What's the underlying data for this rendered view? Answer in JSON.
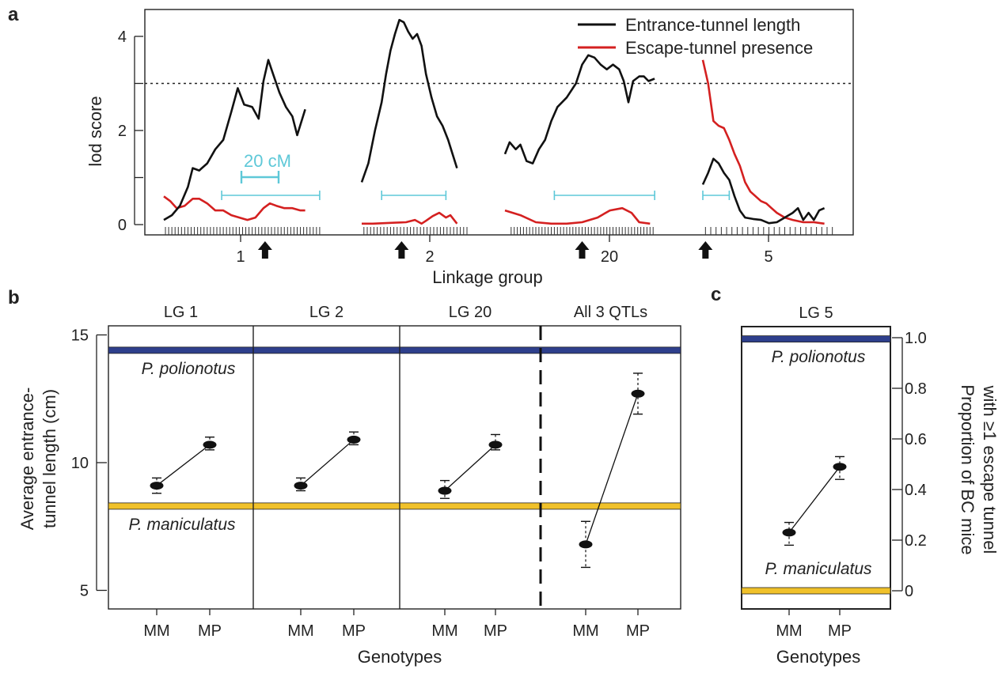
{
  "panel_labels": {
    "a": "a",
    "b": "b",
    "c": "c"
  },
  "colors": {
    "entrance": "#111111",
    "escape": "#d42020",
    "scale_bar": "#5ec8d8",
    "polionotus_band": "#2e3f8c",
    "maniculatus_band": "#f0c12a",
    "axis": "#222222"
  },
  "chart_data": [
    {
      "id": "panel-a",
      "type": "line",
      "xlabel": "Linkage group",
      "ylabel": "lod score",
      "ylim": [
        0,
        4.4
      ],
      "yticks": [
        0,
        2,
        4
      ],
      "threshold": 3.0,
      "threshold_style": "dotted",
      "legend": {
        "placement": "top-right",
        "entries": [
          {
            "name": "Entrance-tunnel length",
            "color": "#111111"
          },
          {
            "name": "Escape-tunnel presence",
            "color": "#d42020"
          }
        ]
      },
      "scale_bar_label": "20 cM",
      "linkage_groups": [
        {
          "label": "1",
          "x_range": [
            0,
            100
          ],
          "peak_marker": 63,
          "bracket": [
            36,
            97
          ],
          "markers": [
            1,
            3,
            5,
            7,
            9,
            11,
            13,
            15,
            17,
            19,
            21,
            23,
            25,
            27,
            29,
            31,
            33,
            35,
            37,
            39,
            41,
            43,
            45,
            47,
            49,
            51,
            53,
            55,
            57,
            59,
            61,
            63,
            65,
            67,
            69,
            71,
            73,
            75,
            77,
            79,
            81,
            83,
            85,
            87,
            89,
            91,
            93,
            95,
            97
          ],
          "entrance": [
            [
              0,
              0.1
            ],
            [
              5,
              0.2
            ],
            [
              10,
              0.4
            ],
            [
              15,
              0.8
            ],
            [
              18,
              1.2
            ],
            [
              22,
              1.15
            ],
            [
              27,
              1.3
            ],
            [
              32,
              1.6
            ],
            [
              37,
              1.8
            ],
            [
              42,
              2.4
            ],
            [
              46,
              2.9
            ],
            [
              50,
              2.55
            ],
            [
              55,
              2.5
            ],
            [
              59,
              2.25
            ],
            [
              62,
              3.05
            ],
            [
              65,
              3.5
            ],
            [
              68,
              3.2
            ],
            [
              72,
              2.8
            ],
            [
              76,
              2.5
            ],
            [
              80,
              2.3
            ],
            [
              83,
              1.9
            ],
            [
              88,
              2.45
            ]
          ],
          "escape": [
            [
              0,
              0.6
            ],
            [
              4,
              0.5
            ],
            [
              8,
              0.35
            ],
            [
              13,
              0.4
            ],
            [
              18,
              0.55
            ],
            [
              22,
              0.55
            ],
            [
              27,
              0.45
            ],
            [
              32,
              0.3
            ],
            [
              37,
              0.3
            ],
            [
              42,
              0.2
            ],
            [
              47,
              0.15
            ],
            [
              52,
              0.1
            ],
            [
              57,
              0.15
            ],
            [
              62,
              0.35
            ],
            [
              66,
              0.45
            ],
            [
              70,
              0.4
            ],
            [
              75,
              0.35
            ],
            [
              80,
              0.35
            ],
            [
              85,
              0.3
            ],
            [
              88,
              0.3
            ]
          ]
        },
        {
          "label": "2",
          "x_range": [
            0,
            100
          ],
          "peak_marker": 36,
          "bracket": [
            18,
            76
          ],
          "markers": [
            2,
            5,
            8,
            11,
            14,
            17,
            20,
            23,
            26,
            29,
            32,
            35,
            38,
            41,
            44,
            47,
            50,
            53,
            56,
            59,
            62,
            65,
            68,
            71,
            74,
            77,
            80,
            83,
            86,
            89,
            92,
            95
          ],
          "entrance": [
            [
              0,
              0.9
            ],
            [
              6,
              1.3
            ],
            [
              12,
              2.0
            ],
            [
              18,
              2.6
            ],
            [
              22,
              3.2
            ],
            [
              26,
              3.7
            ],
            [
              30,
              4.05
            ],
            [
              34,
              4.35
            ],
            [
              38,
              4.3
            ],
            [
              42,
              4.1
            ],
            [
              46,
              3.95
            ],
            [
              50,
              4.05
            ],
            [
              54,
              3.8
            ],
            [
              58,
              3.2
            ],
            [
              63,
              2.7
            ],
            [
              68,
              2.3
            ],
            [
              73,
              2.1
            ],
            [
              78,
              1.8
            ],
            [
              82,
              1.5
            ],
            [
              86,
              1.2
            ]
          ],
          "escape": [
            [
              0,
              0.02
            ],
            [
              10,
              0.02
            ],
            [
              20,
              0.03
            ],
            [
              30,
              0.04
            ],
            [
              40,
              0.05
            ],
            [
              48,
              0.1
            ],
            [
              54,
              0.02
            ],
            [
              58,
              0.08
            ],
            [
              64,
              0.18
            ],
            [
              70,
              0.25
            ],
            [
              76,
              0.15
            ],
            [
              80,
              0.2
            ],
            [
              86,
              0.02
            ]
          ]
        },
        {
          "label": "20",
          "x_range": [
            0,
            100
          ],
          "peak_marker": 50,
          "bracket": [
            32,
            97
          ],
          "markers": [
            4,
            6,
            8,
            10,
            12,
            14,
            16,
            18,
            20,
            22,
            24,
            26,
            28,
            30,
            32,
            34,
            36,
            38,
            40,
            42,
            44,
            46,
            48,
            50,
            52,
            54,
            56,
            58,
            60,
            62,
            64,
            66,
            68,
            70,
            72,
            74,
            76,
            78,
            80,
            82,
            84,
            86,
            88,
            90,
            92,
            94,
            96
          ],
          "entrance": [
            [
              0,
              1.5
            ],
            [
              3,
              1.75
            ],
            [
              7,
              1.6
            ],
            [
              10,
              1.7
            ],
            [
              14,
              1.35
            ],
            [
              18,
              1.3
            ],
            [
              22,
              1.6
            ],
            [
              26,
              1.8
            ],
            [
              30,
              2.2
            ],
            [
              34,
              2.5
            ],
            [
              40,
              2.7
            ],
            [
              46,
              3.0
            ],
            [
              50,
              3.4
            ],
            [
              54,
              3.6
            ],
            [
              58,
              3.55
            ],
            [
              62,
              3.4
            ],
            [
              66,
              3.3
            ],
            [
              70,
              3.4
            ],
            [
              74,
              3.3
            ],
            [
              77,
              3.05
            ],
            [
              80,
              2.6
            ],
            [
              83,
              3.05
            ],
            [
              87,
              3.15
            ],
            [
              90,
              3.15
            ],
            [
              93,
              3.05
            ],
            [
              97,
              3.1
            ]
          ],
          "escape": [
            [
              0,
              0.3
            ],
            [
              5,
              0.25
            ],
            [
              10,
              0.2
            ],
            [
              20,
              0.05
            ],
            [
              30,
              0.02
            ],
            [
              40,
              0.02
            ],
            [
              50,
              0.05
            ],
            [
              60,
              0.15
            ],
            [
              68,
              0.3
            ],
            [
              76,
              0.35
            ],
            [
              82,
              0.25
            ],
            [
              87,
              0.05
            ],
            [
              94,
              0.02
            ]
          ]
        },
        {
          "label": "5",
          "x_range": [
            0,
            100
          ],
          "peak_marker": 2,
          "bracket": [
            0,
            20
          ],
          "markers": [
            2,
            6,
            10,
            14,
            18,
            22,
            26,
            30,
            34,
            38,
            42,
            46,
            50,
            54,
            58,
            62,
            66,
            70,
            74,
            78,
            82,
            86,
            90,
            94,
            98
          ],
          "entrance": [
            [
              0,
              0.85
            ],
            [
              4,
              1.1
            ],
            [
              8,
              1.4
            ],
            [
              12,
              1.3
            ],
            [
              16,
              1.1
            ],
            [
              20,
              0.95
            ],
            [
              24,
              0.6
            ],
            [
              28,
              0.3
            ],
            [
              32,
              0.15
            ],
            [
              38,
              0.12
            ],
            [
              44,
              0.1
            ],
            [
              50,
              0.03
            ],
            [
              56,
              0.05
            ],
            [
              62,
              0.15
            ],
            [
              68,
              0.25
            ],
            [
              72,
              0.35
            ],
            [
              76,
              0.1
            ],
            [
              80,
              0.25
            ],
            [
              84,
              0.1
            ],
            [
              88,
              0.3
            ],
            [
              92,
              0.35
            ]
          ],
          "escape": [
            [
              0,
              3.5
            ],
            [
              4,
              3.0
            ],
            [
              8,
              2.2
            ],
            [
              12,
              2.1
            ],
            [
              16,
              2.05
            ],
            [
              20,
              1.8
            ],
            [
              24,
              1.5
            ],
            [
              28,
              1.25
            ],
            [
              32,
              0.9
            ],
            [
              36,
              0.7
            ],
            [
              40,
              0.6
            ],
            [
              44,
              0.5
            ],
            [
              48,
              0.45
            ],
            [
              52,
              0.35
            ],
            [
              56,
              0.25
            ],
            [
              62,
              0.15
            ],
            [
              68,
              0.1
            ],
            [
              76,
              0.05
            ],
            [
              84,
              0.05
            ],
            [
              92,
              0.02
            ]
          ]
        }
      ]
    },
    {
      "id": "panel-b",
      "type": "scatter",
      "ylabel": "Average entrance-tunnel length (cm)",
      "xlabel": "Genotypes",
      "ylim": [
        4.3,
        15.4
      ],
      "yticks": [
        5,
        10,
        15
      ],
      "polionotus_value": 14.4,
      "maniculatus_value": 8.3,
      "species_labels": {
        "polionotus": "P. polionotus",
        "maniculatus": "P. maniculatus"
      },
      "categories": [
        "MM",
        "MP"
      ],
      "facets": [
        {
          "title": "LG 1",
          "points": [
            {
              "genotype": "MM",
              "mean": 9.1,
              "upper": 9.4,
              "lower": 8.8
            },
            {
              "genotype": "MP",
              "mean": 10.7,
              "upper": 11.0,
              "lower": 10.5
            }
          ]
        },
        {
          "title": "LG 2",
          "points": [
            {
              "genotype": "MM",
              "mean": 9.1,
              "upper": 9.4,
              "lower": 8.9
            },
            {
              "genotype": "MP",
              "mean": 10.9,
              "upper": 11.2,
              "lower": 10.7
            }
          ]
        },
        {
          "title": "LG 20",
          "points": [
            {
              "genotype": "MM",
              "mean": 8.9,
              "upper": 9.3,
              "lower": 8.6
            },
            {
              "genotype": "MP",
              "mean": 10.7,
              "upper": 11.1,
              "lower": 10.5
            }
          ]
        },
        {
          "title": "All 3 QTLs",
          "points": [
            {
              "genotype": "MM",
              "mean": 6.8,
              "upper": 7.7,
              "lower": 5.9
            },
            {
              "genotype": "MP",
              "mean": 12.7,
              "upper": 13.5,
              "lower": 11.9
            }
          ]
        }
      ]
    },
    {
      "id": "panel-c",
      "type": "scatter",
      "ylabel": "Proportion of BC mice with ≥1 escape tunnel",
      "xlabel": "Genotypes",
      "ylim": [
        -0.09,
        1.04
      ],
      "yticks": [
        0,
        0.2,
        0.4,
        0.6,
        0.8,
        1.0
      ],
      "ytick_labels": [
        "0",
        "0.2",
        "0.4",
        "0.6",
        "0.8",
        "1.0"
      ],
      "polionotus_value": 0.995,
      "maniculatus_value": 0.0,
      "species_labels": {
        "polionotus": "P. polionotus",
        "maniculatus": "P. maniculatus"
      },
      "categories": [
        "MM",
        "MP"
      ],
      "facets": [
        {
          "title": "LG 5",
          "points": [
            {
              "genotype": "MM",
              "mean": 0.23,
              "upper": 0.27,
              "lower": 0.18
            },
            {
              "genotype": "MP",
              "mean": 0.49,
              "upper": 0.53,
              "lower": 0.44
            }
          ]
        }
      ]
    }
  ]
}
